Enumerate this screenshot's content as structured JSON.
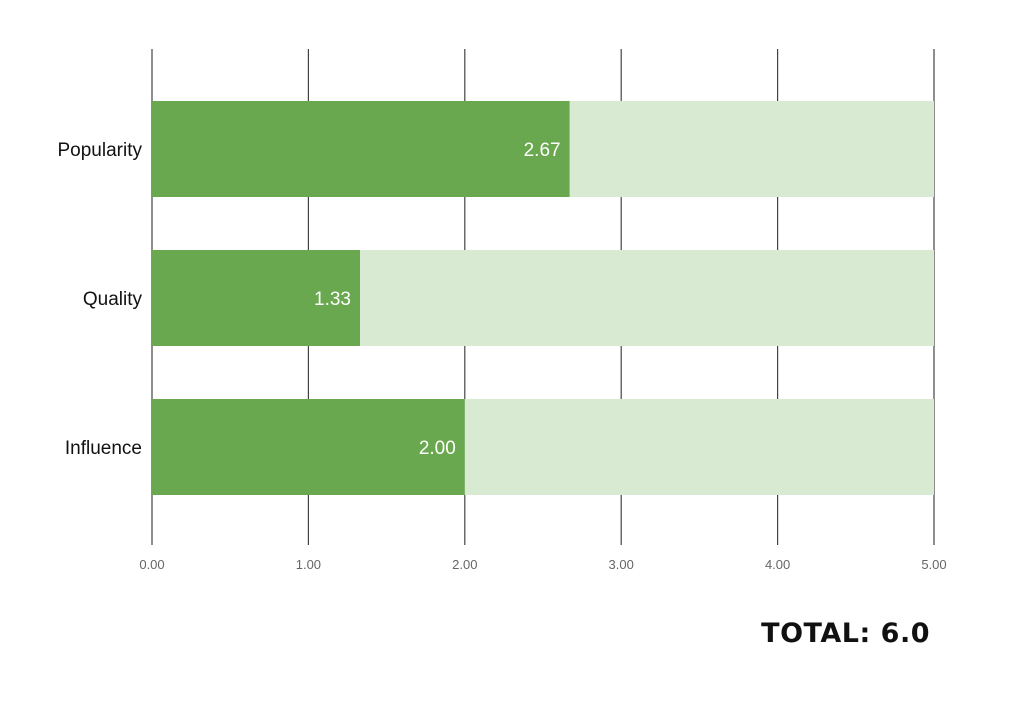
{
  "chart_data": {
    "type": "bar",
    "orientation": "horizontal",
    "categories": [
      "Popularity",
      "Quality",
      "Influence"
    ],
    "values": [
      2.67,
      1.33,
      2.0
    ],
    "value_labels": [
      "2.67",
      "1.33",
      "2.00"
    ],
    "max_values": [
      5,
      5,
      5
    ],
    "xlim": [
      0,
      5
    ],
    "xticks": [
      0,
      1,
      2,
      3,
      4,
      5
    ],
    "xtick_labels": [
      "0.00",
      "1.00",
      "2.00",
      "3.00",
      "4.00",
      "5.00"
    ],
    "grid": true,
    "title": "",
    "xlabel": "",
    "ylabel": ""
  },
  "colors": {
    "bar_fill": "#6aa84f",
    "bar_track": "#d9ead3",
    "grid_line": "#444444",
    "value_text": "#ffffff",
    "tick_text": "#666666",
    "category_text": "#111111"
  },
  "total": {
    "label": "TOTAL: 6.0"
  }
}
